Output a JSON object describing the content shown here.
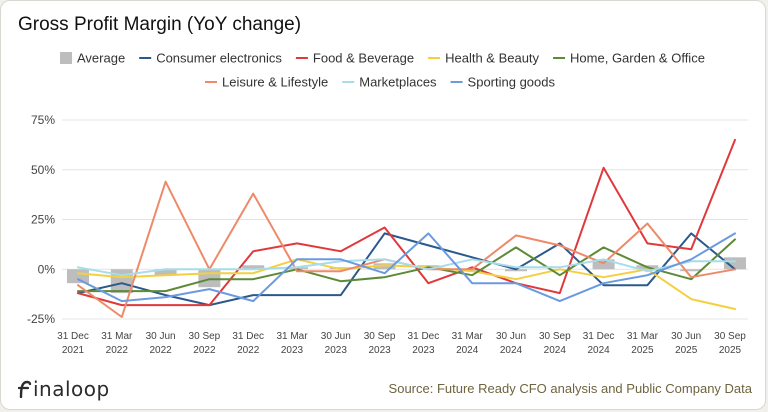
{
  "chart_data": {
    "type": "line",
    "title": "Gross Profit Margin (YoY change)",
    "ylabel": "",
    "xlabel": "",
    "ylim": [
      -25,
      75
    ],
    "yticks": [
      75,
      50,
      25,
      0,
      -25
    ],
    "ytick_labels": [
      "75%",
      "50%",
      "25%",
      "0%",
      "-25%"
    ],
    "categories": [
      [
        "31 Dec",
        "2021"
      ],
      [
        "31 Mar",
        "2022"
      ],
      [
        "30 Jun",
        "2022"
      ],
      [
        "30 Sep",
        "2022"
      ],
      [
        "31 Dec",
        "2022"
      ],
      [
        "31 Mar",
        "2023"
      ],
      [
        "30 Jun",
        "2023"
      ],
      [
        "30 Sep",
        "2023"
      ],
      [
        "31 Dec",
        "2023"
      ],
      [
        "31 Mar",
        "2024"
      ],
      [
        "30 Jun",
        "2024"
      ],
      [
        "30 Sep",
        "2024"
      ],
      [
        "31 Dec",
        "2024"
      ],
      [
        "31 Mar",
        "2025"
      ],
      [
        "30 Jun",
        "2025"
      ],
      [
        "30 Sep",
        "2025"
      ]
    ],
    "average": {
      "name": "Average",
      "color": "#bdbdbd",
      "values": [
        -7,
        -12,
        -3,
        -9,
        2,
        1,
        1,
        3,
        2,
        -1,
        -1,
        0,
        5,
        2,
        -1,
        6
      ]
    },
    "series": [
      {
        "name": "Consumer electronics",
        "color": "#2b5a8a",
        "values": [
          -12,
          -7,
          -13,
          -18,
          -13,
          -13,
          -13,
          18,
          12,
          6,
          0,
          13,
          -8,
          -8,
          18,
          0
        ]
      },
      {
        "name": "Food & Beverage",
        "color": "#e0393c",
        "values": [
          -12,
          -18,
          -18,
          -18,
          9,
          13,
          9,
          21,
          -7,
          1,
          -7,
          -12,
          51,
          13,
          10,
          65
        ]
      },
      {
        "name": "Health & Beauty",
        "color": "#f4d03f",
        "values": [
          -2,
          -4,
          -3,
          -2,
          -2,
          5,
          0,
          2,
          1,
          -1,
          -5,
          0,
          -4,
          0,
          -15,
          -20
        ]
      },
      {
        "name": "Home, Garden & Office",
        "color": "#5c8a36",
        "values": [
          -11,
          -11,
          -11,
          -5,
          -5,
          0,
          -6,
          -4,
          1,
          -3,
          11,
          -3,
          11,
          1,
          -5,
          15
        ]
      },
      {
        "name": "Leisure & Lifestyle",
        "color": "#ee8a6a",
        "values": [
          -8,
          -24,
          44,
          0,
          38,
          -1,
          -1,
          5,
          0,
          0,
          17,
          12,
          3,
          23,
          -4,
          0
        ]
      },
      {
        "name": "Marketplaces",
        "color": "#a6dcec",
        "values": [
          1,
          -3,
          0,
          0,
          0,
          1,
          4,
          5,
          0,
          5,
          1,
          1,
          5,
          -1,
          4,
          4
        ]
      },
      {
        "name": "Sporting goods",
        "color": "#6b9ae0",
        "values": [
          -5,
          -16,
          -14,
          -10,
          -16,
          5,
          5,
          -2,
          18,
          -7,
          -7,
          -16,
          -7,
          -3,
          5,
          18
        ]
      }
    ]
  },
  "footer": {
    "logo_text": "finaloop",
    "source": "Source: Future Ready CFO analysis and Public Company Data"
  }
}
